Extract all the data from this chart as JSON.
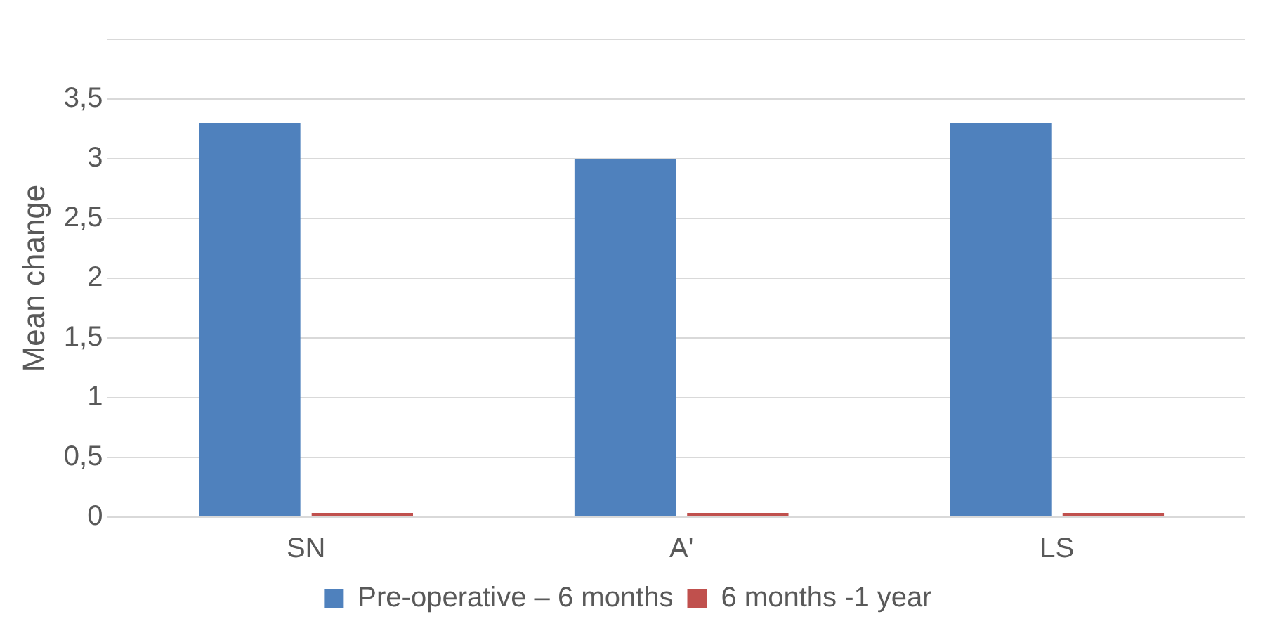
{
  "chart_data": {
    "type": "bar",
    "ylabel": "Mean change",
    "categories": [
      "SN",
      "A'",
      "LS"
    ],
    "series": [
      {
        "name": "Pre-operative – 6 months",
        "color": "#4f81bd",
        "values": [
          3.3,
          3.0,
          3.3
        ]
      },
      {
        "name": "6 months -1 year",
        "color": "#c0504d",
        "values": [
          0,
          0,
          0
        ]
      }
    ],
    "ylim": [
      0,
      4
    ],
    "yticks": [
      0,
      {
        "value": 0.5,
        "label": "0,5"
      },
      1,
      {
        "value": 1.5,
        "label": "1,5"
      },
      2,
      {
        "value": 2.5,
        "label": "2,5"
      },
      3,
      {
        "value": 3.5,
        "label": "3,5"
      },
      {
        "value": 4,
        "label": null
      }
    ],
    "grid": "y",
    "legend": "bottom"
  }
}
